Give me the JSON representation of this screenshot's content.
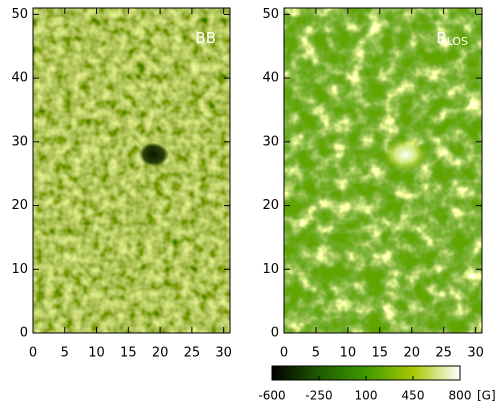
{
  "chart_data": [
    {
      "type": "image",
      "title": "BB",
      "xlim": [
        0,
        31
      ],
      "ylim": [
        0,
        51
      ],
      "xticks": [
        0,
        5,
        10,
        15,
        20,
        25,
        30
      ],
      "yticks": [
        0,
        10,
        20,
        30,
        40,
        50
      ]
    },
    {
      "type": "image",
      "title": "B",
      "title_subscript": "LOS",
      "xlim": [
        0,
        31
      ],
      "ylim": [
        0,
        51
      ],
      "xticks": [
        0,
        5,
        10,
        15,
        20,
        25,
        30
      ],
      "yticks": [
        0,
        10,
        20,
        30,
        40,
        50
      ],
      "colorbar": {
        "lim": [
          -600,
          800
        ],
        "ticks": [
          -600,
          -250,
          100,
          450,
          800
        ],
        "unit": "[G]",
        "colors": [
          "#000000",
          "#1f5a00",
          "#3f9a00",
          "#a8c800",
          "#ffffff"
        ]
      }
    }
  ]
}
